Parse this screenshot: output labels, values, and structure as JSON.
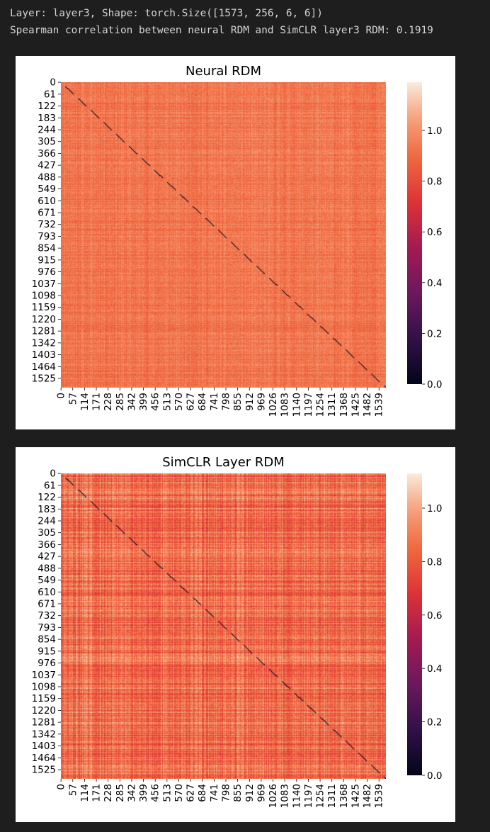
{
  "output": {
    "lines": [
      "Layer: layer3, Shape: torch.Size([1573, 256, 6, 6])",
      "Spearman correlation between neural RDM and SimCLR layer3 RDM: 0.1919"
    ]
  },
  "colors": {
    "background": "#1e1e1e",
    "text": "#d4d4d4",
    "colormap": "rocket"
  },
  "chart_data": [
    {
      "type": "heatmap",
      "title": "Neural RDM",
      "matrix_size": 1573,
      "x_tick_labels": [
        "0",
        "57",
        "114",
        "171",
        "228",
        "285",
        "342",
        "399",
        "456",
        "513",
        "570",
        "627",
        "684",
        "741",
        "798",
        "855",
        "912",
        "969",
        "1026",
        "1083",
        "1140",
        "1197",
        "1254",
        "1311",
        "1368",
        "1425",
        "1482",
        "1539"
      ],
      "y_tick_labels": [
        "0",
        "61",
        "122",
        "183",
        "244",
        "305",
        "366",
        "427",
        "488",
        "549",
        "610",
        "671",
        "732",
        "793",
        "854",
        "915",
        "976",
        "1037",
        "1098",
        "1159",
        "1220",
        "1281",
        "1342",
        "1403",
        "1464",
        "1525"
      ],
      "colorbar": {
        "ticks": [
          "0.0",
          "0.2",
          "0.4",
          "0.6",
          "0.8",
          "1.0"
        ],
        "tick_values": [
          0.0,
          0.2,
          0.4,
          0.6,
          0.8,
          1.0
        ],
        "range": [
          0.0,
          1.19
        ]
      },
      "value_summary": {
        "diagonal": 0.0,
        "typical_mean": 0.93,
        "typical_spread": 0.07
      }
    },
    {
      "type": "heatmap",
      "title": "SimCLR Layer RDM",
      "matrix_size": 1573,
      "x_tick_labels": [
        "0",
        "57",
        "114",
        "171",
        "228",
        "285",
        "342",
        "399",
        "456",
        "513",
        "570",
        "627",
        "684",
        "741",
        "798",
        "855",
        "912",
        "969",
        "1026",
        "1083",
        "1140",
        "1197",
        "1254",
        "1311",
        "1368",
        "1425",
        "1482",
        "1539"
      ],
      "y_tick_labels": [
        "0",
        "61",
        "122",
        "183",
        "244",
        "305",
        "366",
        "427",
        "488",
        "549",
        "610",
        "671",
        "732",
        "793",
        "854",
        "915",
        "976",
        "1037",
        "1098",
        "1159",
        "1220",
        "1281",
        "1342",
        "1403",
        "1464",
        "1525"
      ],
      "colorbar": {
        "ticks": [
          "0.0",
          "0.2",
          "0.4",
          "0.6",
          "0.8",
          "1.0"
        ],
        "tick_values": [
          0.0,
          0.2,
          0.4,
          0.6,
          0.8,
          1.0
        ],
        "range": [
          0.0,
          1.13
        ]
      },
      "value_summary": {
        "diagonal": 0.0,
        "typical_mean": 0.86,
        "typical_spread": 0.09
      }
    }
  ]
}
